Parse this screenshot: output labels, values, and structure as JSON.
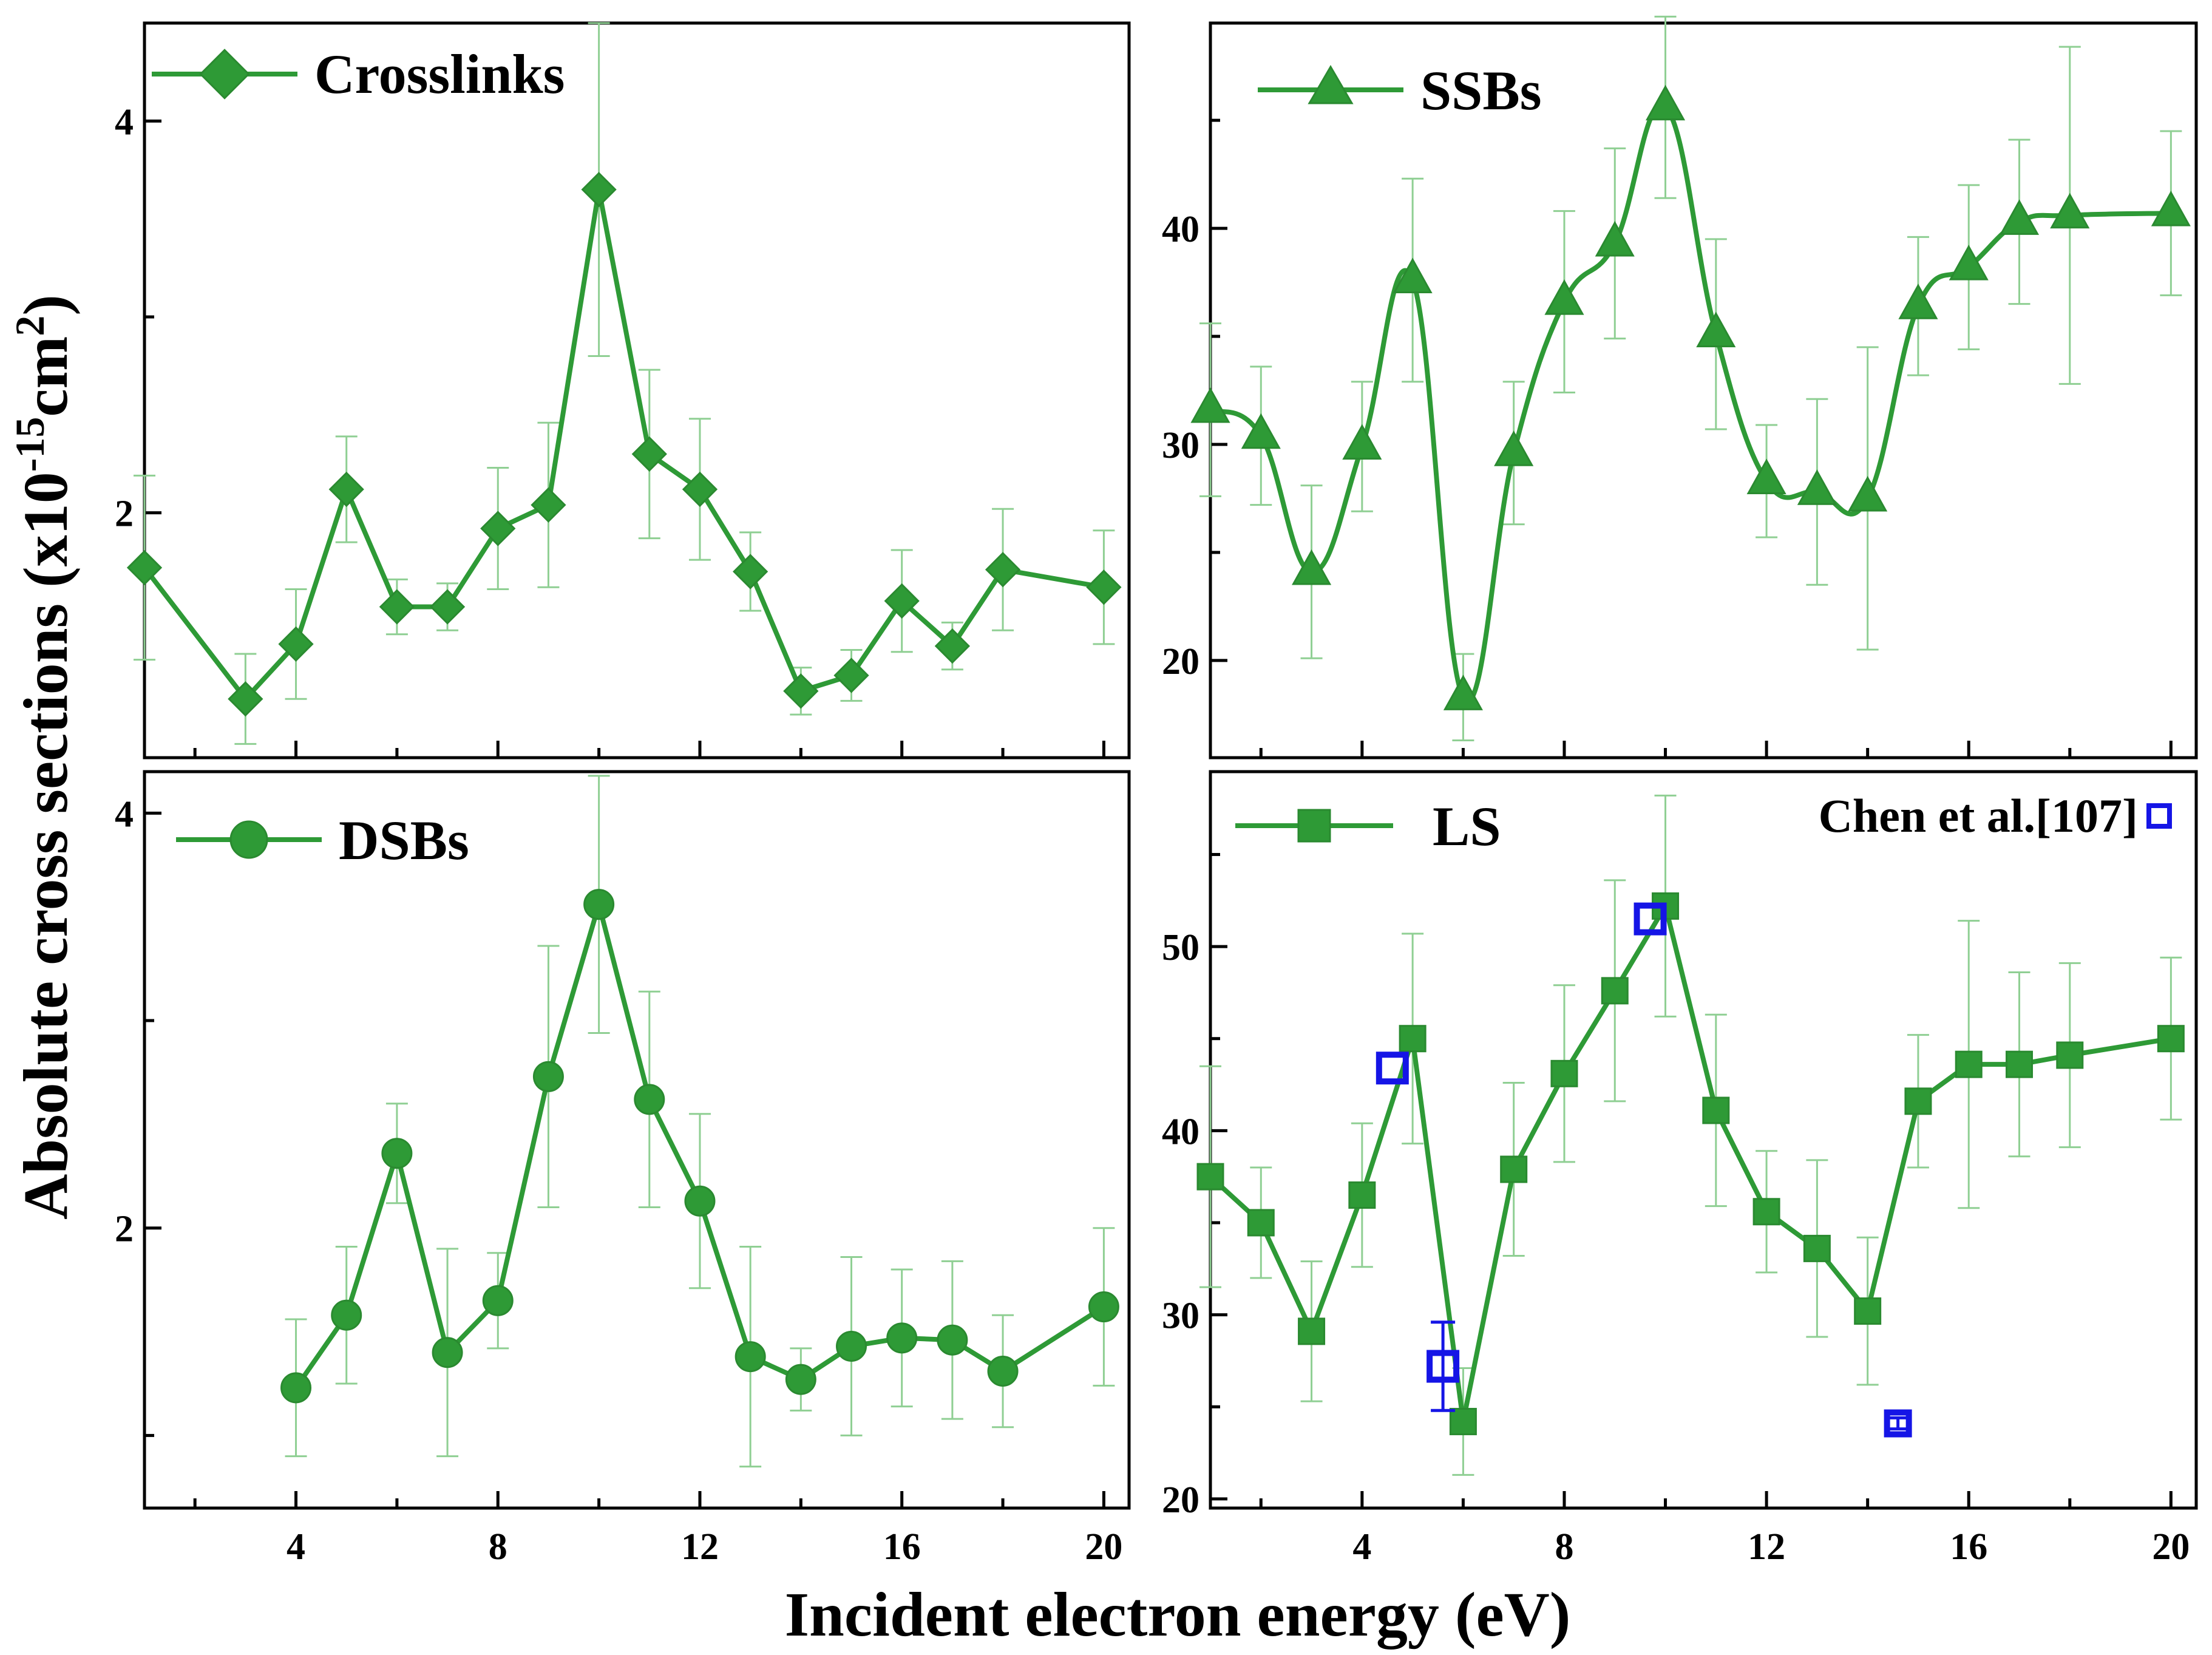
{
  "chart_data": {
    "type": "line",
    "x_axis_title": "Incident electron energy (eV)",
    "y_axis_title_parts": [
      "Absolute cross sections (x10",
      "-15",
      "cm",
      "2",
      ")"
    ],
    "colors": {
      "series": "#2e9a36",
      "reference": "#1515e6"
    },
    "panels": [
      {
        "id": "crosslinks",
        "legend": "Crosslinks",
        "marker": "diamond",
        "smooth": false,
        "xlim": [
          1,
          20.5
        ],
        "ylim": [
          0.75,
          4.5
        ],
        "yticks": [
          2,
          4
        ],
        "yminor": [
          3
        ],
        "x": [
          1,
          3,
          4,
          5,
          6,
          7,
          8,
          9,
          10,
          11,
          12,
          13,
          14,
          15,
          16,
          17,
          18,
          20
        ],
        "y": [
          1.72,
          1.05,
          1.33,
          2.12,
          1.52,
          1.52,
          1.92,
          2.04,
          3.65,
          2.3,
          2.12,
          1.7,
          1.09,
          1.17,
          1.55,
          1.32,
          1.71,
          1.62
        ],
        "err": [
          0.47,
          0.23,
          0.28,
          0.27,
          0.14,
          0.12,
          0.31,
          0.42,
          0.85,
          0.43,
          0.36,
          0.2,
          0.12,
          0.13,
          0.26,
          0.12,
          0.31,
          0.29
        ]
      },
      {
        "id": "ssbs",
        "legend": "SSBs",
        "marker": "triangle",
        "smooth": true,
        "xlim": [
          1,
          20.5
        ],
        "ylim": [
          15.5,
          49.5
        ],
        "yticks": [
          20,
          30,
          40
        ],
        "yminor": [
          25,
          35,
          45
        ],
        "x": [
          1,
          2,
          3,
          4,
          5,
          6,
          7,
          8,
          9,
          10,
          11,
          12,
          13,
          14,
          15,
          16,
          17,
          18,
          20
        ],
        "y": [
          31.6,
          30.4,
          24.1,
          29.9,
          37.6,
          18.3,
          29.6,
          36.6,
          39.3,
          45.6,
          35.1,
          28.3,
          27.8,
          27.5,
          36.4,
          38.2,
          40.3,
          40.6,
          40.7
        ],
        "err": [
          4.0,
          3.2,
          4.0,
          3.0,
          4.7,
          2.0,
          3.3,
          4.2,
          4.4,
          4.2,
          4.4,
          2.6,
          4.3,
          7.0,
          3.2,
          3.8,
          3.8,
          7.8,
          3.8
        ]
      },
      {
        "id": "dsbs",
        "legend": "DSBs",
        "marker": "circle",
        "smooth": false,
        "xlim": [
          1,
          20.5
        ],
        "ylim": [
          0.65,
          4.2
        ],
        "yticks": [
          2,
          4
        ],
        "yminor": [
          1,
          3
        ],
        "x": [
          4,
          5,
          6,
          7,
          8,
          9,
          10,
          11,
          12,
          13,
          14,
          15,
          16,
          17,
          18,
          20
        ],
        "y": [
          1.23,
          1.58,
          2.36,
          1.4,
          1.65,
          2.73,
          3.56,
          2.62,
          2.13,
          1.38,
          1.27,
          1.43,
          1.47,
          1.46,
          1.31,
          1.62
        ],
        "err": [
          0.33,
          0.33,
          0.24,
          0.5,
          0.23,
          0.63,
          0.62,
          0.52,
          0.42,
          0.53,
          0.15,
          0.43,
          0.33,
          0.38,
          0.27,
          0.38
        ]
      },
      {
        "id": "ls",
        "legend": "LS",
        "marker": "square",
        "smooth": false,
        "xlim": [
          1,
          20.5
        ],
        "ylim": [
          19.5,
          59.5
        ],
        "yticks": [
          20,
          30,
          40,
          50
        ],
        "yminor": [
          25,
          35,
          45,
          55
        ],
        "x": [
          1,
          2,
          3,
          4,
          5,
          6,
          7,
          8,
          9,
          10,
          11,
          12,
          13,
          14,
          15,
          16,
          17,
          18,
          20
        ],
        "y": [
          37.5,
          35.0,
          29.1,
          36.5,
          45.0,
          24.2,
          37.9,
          43.1,
          47.6,
          52.2,
          41.1,
          35.6,
          33.6,
          30.2,
          41.6,
          43.6,
          43.6,
          44.1,
          45.0
        ],
        "err": [
          6.0,
          3.0,
          3.8,
          3.9,
          5.7,
          2.9,
          4.7,
          4.8,
          6.0,
          6.0,
          5.2,
          3.3,
          4.8,
          4.0,
          3.6,
          7.8,
          5.0,
          5.0,
          4.4
        ],
        "reference": {
          "label": "Chen et al.[107]",
          "x": [
            4.6,
            5.6,
            9.7,
            14.6
          ],
          "y": [
            43.4,
            27.2,
            51.5,
            24.1
          ],
          "err": [
            0,
            2.4,
            0,
            0.3
          ]
        }
      }
    ],
    "xticks": [
      4,
      8,
      12,
      16,
      20
    ],
    "xminor": [
      2,
      6,
      10,
      14,
      18
    ]
  }
}
